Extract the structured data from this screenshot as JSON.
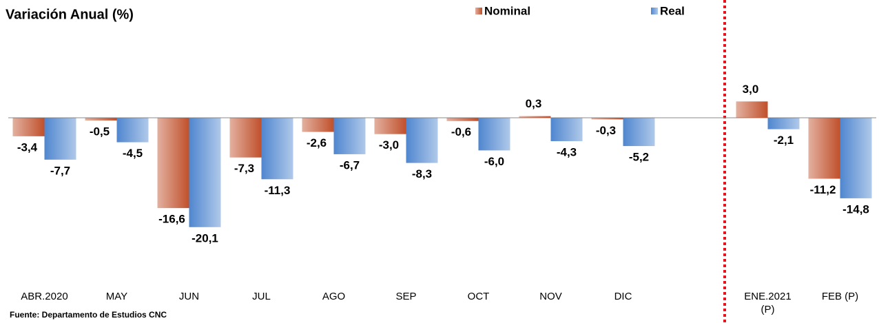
{
  "chart_data": {
    "type": "bar",
    "title": "Variación Anual (%)",
    "categories": [
      "ABR.2020",
      "MAY",
      "JUN",
      "JUL",
      "AGO",
      "SEP",
      "OCT",
      "NOV",
      "DIC",
      null,
      "ENE.2021 (P)",
      "FEB (P)"
    ],
    "series": [
      {
        "name": "Nominal",
        "color": "#c0502b",
        "values": [
          -3.4,
          -0.5,
          -16.6,
          -7.3,
          -2.6,
          -3.0,
          -0.6,
          0.3,
          -0.3,
          null,
          3.0,
          -11.2
        ],
        "value_labels": [
          "-3,4",
          "-0,5",
          "-16,6",
          "-7,3",
          "-2,6",
          "-3,0",
          "-0,6",
          "0,3",
          "-0,3",
          null,
          "3,0",
          "-11,2"
        ]
      },
      {
        "name": "Real",
        "color": "#4f86cf",
        "values": [
          -7.7,
          -4.5,
          -20.1,
          -11.3,
          -6.7,
          -8.3,
          -6.0,
          -4.3,
          -5.2,
          null,
          -2.1,
          -14.8
        ],
        "value_labels": [
          "-7,7",
          "-4,5",
          "-20,1",
          "-11,3",
          "-6,7",
          "-8,3",
          "-6,0",
          "-4,3",
          "-5,2",
          null,
          "-2,1",
          "-14,8"
        ]
      }
    ],
    "ylim": [
      -30,
      20
    ],
    "source": "Fuente: Departamento de Estudios CNC"
  }
}
